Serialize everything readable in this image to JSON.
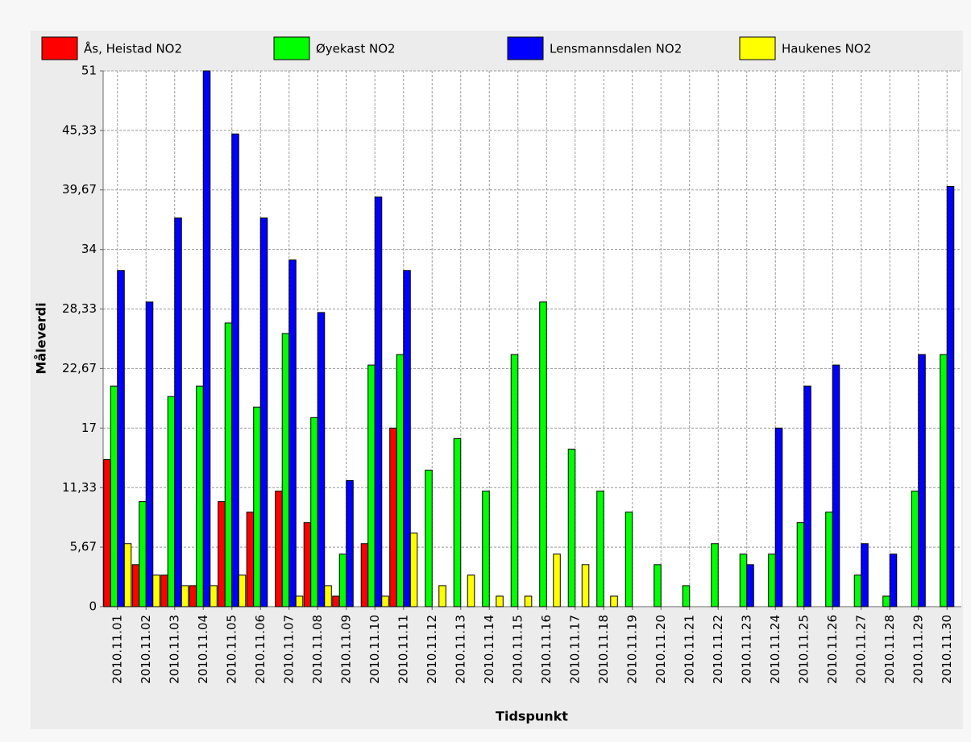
{
  "chart_data": {
    "type": "bar",
    "x_label": "Tidspunkt",
    "y_label": "Måleverdi",
    "categories": [
      "2010.11.01",
      "2010.11.02",
      "2010.11.03",
      "2010.11.04",
      "2010.11.05",
      "2010.11.06",
      "2010.11.07",
      "2010.11.08",
      "2010.11.09",
      "2010.11.10",
      "2010.11.11",
      "2010.11.12",
      "2010.11.13",
      "2010.11.14",
      "2010.11.15",
      "2010.11.16",
      "2010.11.17",
      "2010.11.18",
      "2010.11.19",
      "2010.11.20",
      "2010.11.21",
      "2010.11.22",
      "2010.11.23",
      "2010.11.24",
      "2010.11.25",
      "2010.11.26",
      "2010.11.27",
      "2010.11.28",
      "2010.11.29",
      "2010.11.30"
    ],
    "series": [
      {
        "name": "Ås, Heistad NO2",
        "color": "#ff0000",
        "values": [
          14,
          4,
          3,
          2,
          10,
          9,
          11,
          8,
          1,
          6,
          17,
          null,
          null,
          null,
          null,
          null,
          null,
          null,
          null,
          null,
          null,
          null,
          null,
          null,
          null,
          null,
          null,
          null,
          null,
          null
        ]
      },
      {
        "name": "Øyekast NO2",
        "color": "#00ff00",
        "values": [
          21,
          10,
          20,
          21,
          27,
          19,
          26,
          18,
          5,
          23,
          24,
          13,
          16,
          11,
          24,
          29,
          15,
          11,
          9,
          4,
          2,
          6,
          5,
          5,
          8,
          9,
          3,
          1,
          11,
          24
        ]
      },
      {
        "name": "Lensmannsdalen NO2",
        "color": "#0000ff",
        "values": [
          32,
          29,
          37,
          51,
          45,
          37,
          33,
          28,
          12,
          39,
          32,
          null,
          null,
          null,
          null,
          null,
          null,
          null,
          null,
          null,
          null,
          null,
          4,
          17,
          21,
          23,
          6,
          5,
          24,
          40
        ]
      },
      {
        "name": "Haukenes NO2",
        "color": "#ffff00",
        "values": [
          6,
          3,
          2,
          2,
          3,
          null,
          1,
          2,
          null,
          1,
          7,
          2,
          3,
          1,
          1,
          5,
          4,
          1,
          null,
          null,
          null,
          null,
          null,
          null,
          null,
          null,
          null,
          null,
          null,
          null
        ]
      }
    ],
    "ylim": [
      0,
      51
    ],
    "yticks": [
      0,
      {
        "value": 5.67,
        "label": "5,67"
      },
      {
        "value": 11.33,
        "label": "11,33"
      },
      17,
      {
        "value": 22.67,
        "label": "22,67"
      },
      {
        "value": 28.33,
        "label": "28,33"
      },
      34,
      {
        "value": 39.67,
        "label": "39,67"
      },
      {
        "value": 45.33,
        "label": "45,33"
      },
      51
    ],
    "grid": true,
    "legend": "top"
  }
}
